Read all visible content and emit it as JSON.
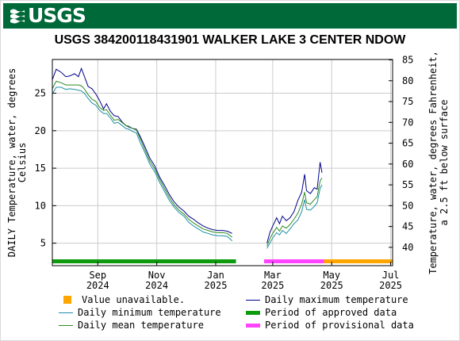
{
  "header": {
    "logo_text": "USGS"
  },
  "chart_data": {
    "type": "line",
    "title": "USGS 384200118431901 WALKER LAKE 3 CENTER NDOW",
    "ylabel_left": [
      "DAILY Temperature, water, degrees",
      "Celsius"
    ],
    "ylabel_right": [
      "Temperature, water, degrees Fahrenheit,",
      "a 2.5 ft below surface"
    ],
    "xlim": [
      "2024-07-16",
      "2025-07-03"
    ],
    "ylim_left": [
      2,
      29.5
    ],
    "ylim_right_approx": [
      35.6,
      85.1
    ],
    "grid": true,
    "legend_position": "bottom",
    "x_ticks": [
      {
        "date": "2024-09-01",
        "month": "Sep",
        "year": "2024"
      },
      {
        "date": "2024-11-01",
        "month": "Nov",
        "year": "2024"
      },
      {
        "date": "2025-01-01",
        "month": "Jan",
        "year": "2025"
      },
      {
        "date": "2025-03-01",
        "month": "Mar",
        "year": "2025"
      },
      {
        "date": "2025-05-01",
        "month": "May",
        "year": "2025"
      },
      {
        "date": "2025-07-01",
        "month": "Jul",
        "year": "2025"
      }
    ],
    "y_ticks_left": [
      5,
      10,
      15,
      20,
      25
    ],
    "y_ticks_right": [
      40,
      45,
      50,
      55,
      60,
      65,
      70,
      75,
      80,
      85
    ],
    "series": [
      {
        "name": "Daily maximum temperature",
        "color": "#00008b",
        "segments": [
          [
            [
              "2024-07-16",
              26.8
            ],
            [
              "2024-07-20",
              28.2
            ],
            [
              "2024-07-25",
              27.8
            ],
            [
              "2024-07-30",
              27.2
            ],
            [
              "2024-08-03",
              27.3
            ],
            [
              "2024-08-08",
              27.6
            ],
            [
              "2024-08-12",
              27.2
            ],
            [
              "2024-08-15",
              28.3
            ],
            [
              "2024-08-18",
              27.3
            ],
            [
              "2024-08-22",
              25.9
            ],
            [
              "2024-08-26",
              25.6
            ],
            [
              "2024-08-30",
              24.9
            ],
            [
              "2024-09-03",
              24.0
            ],
            [
              "2024-09-07",
              22.9
            ],
            [
              "2024-09-10",
              23.6
            ],
            [
              "2024-09-14",
              22.6
            ],
            [
              "2024-09-18",
              22.0
            ],
            [
              "2024-09-22",
              21.9
            ],
            [
              "2024-09-26",
              21.2
            ],
            [
              "2024-09-30",
              20.7
            ],
            [
              "2024-10-03",
              20.5
            ],
            [
              "2024-10-07",
              20.3
            ],
            [
              "2024-10-11",
              20.2
            ],
            [
              "2024-10-15",
              19.2
            ],
            [
              "2024-10-20",
              17.8
            ],
            [
              "2024-10-25",
              16.3
            ],
            [
              "2024-10-30",
              15.3
            ],
            [
              "2024-11-04",
              13.8
            ],
            [
              "2024-11-09",
              12.7
            ],
            [
              "2024-11-14",
              11.5
            ],
            [
              "2024-11-19",
              10.5
            ],
            [
              "2024-11-24",
              9.8
            ],
            [
              "2024-11-29",
              9.3
            ],
            [
              "2024-12-04",
              8.6
            ],
            [
              "2024-12-09",
              8.2
            ],
            [
              "2024-12-14",
              7.7
            ],
            [
              "2024-12-19",
              7.3
            ],
            [
              "2024-12-24",
              7.0
            ],
            [
              "2024-12-29",
              6.8
            ],
            [
              "2025-01-03",
              6.7
            ],
            [
              "2025-01-08",
              6.7
            ],
            [
              "2025-01-13",
              6.6
            ],
            [
              "2025-01-18",
              6.3
            ]
          ],
          [
            [
              "2025-02-23",
              5.0
            ],
            [
              "2025-02-26",
              6.4
            ],
            [
              "2025-03-01",
              7.3
            ],
            [
              "2025-03-05",
              8.4
            ],
            [
              "2025-03-08",
              7.6
            ],
            [
              "2025-03-11",
              8.6
            ],
            [
              "2025-03-15",
              8.0
            ],
            [
              "2025-03-19",
              8.4
            ],
            [
              "2025-03-23",
              9.2
            ],
            [
              "2025-03-27",
              10.7
            ],
            [
              "2025-03-31",
              11.8
            ],
            [
              "2025-04-03",
              14.2
            ],
            [
              "2025-04-05",
              12.0
            ],
            [
              "2025-04-09",
              11.6
            ],
            [
              "2025-04-13",
              12.4
            ],
            [
              "2025-04-16",
              12.2
            ],
            [
              "2025-04-19",
              15.8
            ],
            [
              "2025-04-21",
              14.4
            ]
          ]
        ]
      },
      {
        "name": "Daily minimum temperature",
        "color": "#1b8fa8",
        "segments": [
          [
            [
              "2024-07-16",
              24.9
            ],
            [
              "2024-07-20",
              25.8
            ],
            [
              "2024-07-25",
              25.8
            ],
            [
              "2024-07-30",
              25.5
            ],
            [
              "2024-08-03",
              25.6
            ],
            [
              "2024-08-08",
              25.5
            ],
            [
              "2024-08-12",
              25.4
            ],
            [
              "2024-08-15",
              25.3
            ],
            [
              "2024-08-18",
              25.0
            ],
            [
              "2024-08-22",
              24.3
            ],
            [
              "2024-08-26",
              23.7
            ],
            [
              "2024-08-30",
              23.4
            ],
            [
              "2024-09-03",
              22.7
            ],
            [
              "2024-09-07",
              22.3
            ],
            [
              "2024-09-10",
              22.3
            ],
            [
              "2024-09-14",
              21.7
            ],
            [
              "2024-09-18",
              21.0
            ],
            [
              "2024-09-22",
              21.1
            ],
            [
              "2024-09-26",
              20.7
            ],
            [
              "2024-09-30",
              20.3
            ],
            [
              "2024-10-03",
              20.2
            ],
            [
              "2024-10-07",
              19.9
            ],
            [
              "2024-10-11",
              19.7
            ],
            [
              "2024-10-15",
              18.4
            ],
            [
              "2024-10-20",
              17.0
            ],
            [
              "2024-10-25",
              15.5
            ],
            [
              "2024-10-30",
              14.5
            ],
            [
              "2024-11-04",
              13.1
            ],
            [
              "2024-11-09",
              11.9
            ],
            [
              "2024-11-14",
              10.7
            ],
            [
              "2024-11-19",
              9.8
            ],
            [
              "2024-11-24",
              9.1
            ],
            [
              "2024-11-29",
              8.6
            ],
            [
              "2024-12-04",
              7.8
            ],
            [
              "2024-12-09",
              7.3
            ],
            [
              "2024-12-14",
              6.9
            ],
            [
              "2024-12-19",
              6.5
            ],
            [
              "2024-12-24",
              6.3
            ],
            [
              "2024-12-29",
              6.1
            ],
            [
              "2025-01-03",
              6.0
            ],
            [
              "2025-01-08",
              6.0
            ],
            [
              "2025-01-13",
              5.9
            ],
            [
              "2025-01-18",
              5.3
            ]
          ],
          [
            [
              "2025-02-23",
              4.3
            ],
            [
              "2025-02-26",
              5.0
            ],
            [
              "2025-03-01",
              5.7
            ],
            [
              "2025-03-05",
              6.4
            ],
            [
              "2025-03-08",
              6.1
            ],
            [
              "2025-03-11",
              6.7
            ],
            [
              "2025-03-15",
              6.3
            ],
            [
              "2025-03-19",
              6.9
            ],
            [
              "2025-03-23",
              7.6
            ],
            [
              "2025-03-27",
              8.1
            ],
            [
              "2025-03-31",
              9.2
            ],
            [
              "2025-04-03",
              10.8
            ],
            [
              "2025-04-05",
              9.5
            ],
            [
              "2025-04-09",
              9.4
            ],
            [
              "2025-04-13",
              9.9
            ],
            [
              "2025-04-16",
              10.4
            ],
            [
              "2025-04-19",
              12.3
            ],
            [
              "2025-04-21",
              12.8
            ]
          ]
        ]
      },
      {
        "name": "Daily mean temperature",
        "color": "#2e8b22",
        "segments": [
          [
            [
              "2024-07-16",
              25.6
            ],
            [
              "2024-07-20",
              26.6
            ],
            [
              "2024-07-25",
              26.4
            ],
            [
              "2024-07-30",
              26.1
            ],
            [
              "2024-08-03",
              26.1
            ],
            [
              "2024-08-08",
              26.1
            ],
            [
              "2024-08-12",
              26.1
            ],
            [
              "2024-08-15",
              26.0
            ],
            [
              "2024-08-18",
              25.6
            ],
            [
              "2024-08-22",
              24.8
            ],
            [
              "2024-08-26",
              24.2
            ],
            [
              "2024-08-30",
              23.9
            ],
            [
              "2024-09-03",
              23.1
            ],
            [
              "2024-09-07",
              22.7
            ],
            [
              "2024-09-10",
              22.8
            ],
            [
              "2024-09-14",
              22.1
            ],
            [
              "2024-09-18",
              21.4
            ],
            [
              "2024-09-22",
              21.5
            ],
            [
              "2024-09-26",
              21.1
            ],
            [
              "2024-09-30",
              20.7
            ],
            [
              "2024-10-03",
              20.6
            ],
            [
              "2024-10-07",
              20.3
            ],
            [
              "2024-10-11",
              20.1
            ],
            [
              "2024-10-15",
              18.9
            ],
            [
              "2024-10-20",
              17.4
            ],
            [
              "2024-10-25",
              15.9
            ],
            [
              "2024-10-30",
              14.9
            ],
            [
              "2024-11-04",
              13.5
            ],
            [
              "2024-11-09",
              12.3
            ],
            [
              "2024-11-14",
              11.1
            ],
            [
              "2024-11-19",
              10.1
            ],
            [
              "2024-11-24",
              9.4
            ],
            [
              "2024-11-29",
              8.9
            ],
            [
              "2024-12-04",
              8.2
            ],
            [
              "2024-12-09",
              7.7
            ],
            [
              "2024-12-14",
              7.3
            ],
            [
              "2024-12-19",
              6.9
            ],
            [
              "2024-12-24",
              6.7
            ],
            [
              "2024-12-29",
              6.5
            ],
            [
              "2025-01-03",
              6.4
            ],
            [
              "2025-01-08",
              6.4
            ],
            [
              "2025-01-13",
              6.3
            ],
            [
              "2025-01-18",
              5.8
            ]
          ],
          [
            [
              "2025-02-23",
              4.6
            ],
            [
              "2025-02-26",
              5.6
            ],
            [
              "2025-03-01",
              6.3
            ],
            [
              "2025-03-05",
              7.1
            ],
            [
              "2025-03-08",
              6.6
            ],
            [
              "2025-03-11",
              7.3
            ],
            [
              "2025-03-15",
              7.0
            ],
            [
              "2025-03-19",
              7.5
            ],
            [
              "2025-03-23",
              8.2
            ],
            [
              "2025-03-27",
              9.0
            ],
            [
              "2025-03-31",
              10.2
            ],
            [
              "2025-04-03",
              11.8
            ],
            [
              "2025-04-05",
              10.4
            ],
            [
              "2025-04-09",
              10.2
            ],
            [
              "2025-04-13",
              10.8
            ],
            [
              "2025-04-16",
              11.2
            ],
            [
              "2025-04-19",
              13.3
            ],
            [
              "2025-04-21",
              13.7
            ]
          ]
        ]
      }
    ],
    "period_bars": [
      {
        "name": "Period of approved data",
        "color": "#0d9b0d",
        "start": "2024-07-16",
        "end": "2025-01-22"
      },
      {
        "name": "Period of provisional data",
        "color": "#ff44ff",
        "start": "2025-02-20",
        "end": "2025-07-03"
      },
      {
        "name": "Value unavailable.",
        "color": "#ffa500",
        "start": "2025-04-23",
        "end": "2025-07-03"
      }
    ],
    "legend": [
      {
        "label": "Value unavailable.",
        "color": "#ffa500",
        "kind": "square"
      },
      {
        "label": "Daily maximum temperature",
        "color": "#00008b",
        "kind": "line"
      },
      {
        "label": "Daily minimum temperature",
        "color": "#1b8fa8",
        "kind": "line"
      },
      {
        "label": "Period of approved data",
        "color": "#0d9b0d",
        "kind": "thick"
      },
      {
        "label": "Daily mean temperature",
        "color": "#2e8b22",
        "kind": "line"
      },
      {
        "label": "Period of provisional data",
        "color": "#ff44ff",
        "kind": "thick"
      }
    ]
  }
}
